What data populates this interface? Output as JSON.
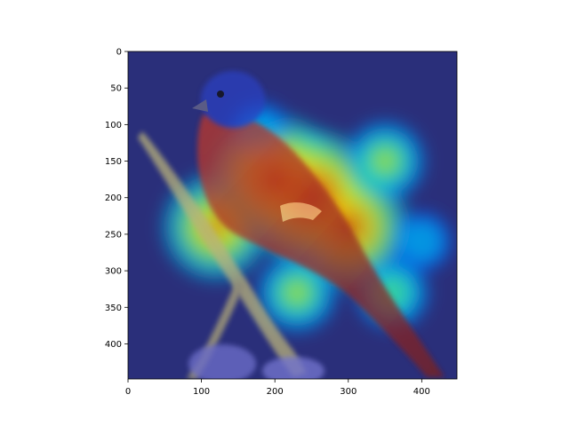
{
  "chart_data": {
    "type": "heatmap",
    "title": "",
    "xlabel": "",
    "ylabel": "",
    "xlim": [
      0,
      448
    ],
    "ylim": [
      448,
      0
    ],
    "x_ticks": [
      0,
      100,
      200,
      300,
      400
    ],
    "y_ticks": [
      0,
      50,
      100,
      150,
      200,
      250,
      300,
      350,
      400
    ],
    "grid": false,
    "colormap": "jet",
    "image_subject": "painted bunting perched on a branch",
    "activation_hotspots": [
      {
        "x": 250,
        "y": 200,
        "intensity": 1.0
      },
      {
        "x": 200,
        "y": 175,
        "intensity": 0.95
      },
      {
        "x": 300,
        "y": 240,
        "intensity": 0.9
      },
      {
        "x": 120,
        "y": 240,
        "intensity": 0.8
      },
      {
        "x": 350,
        "y": 150,
        "intensity": 0.6
      },
      {
        "x": 230,
        "y": 330,
        "intensity": 0.6
      },
      {
        "x": 360,
        "y": 330,
        "intensity": 0.55
      },
      {
        "x": 400,
        "y": 260,
        "intensity": 0.45
      },
      {
        "x": 180,
        "y": 110,
        "intensity": 0.45
      }
    ],
    "background_color": "#2a2f7a"
  }
}
